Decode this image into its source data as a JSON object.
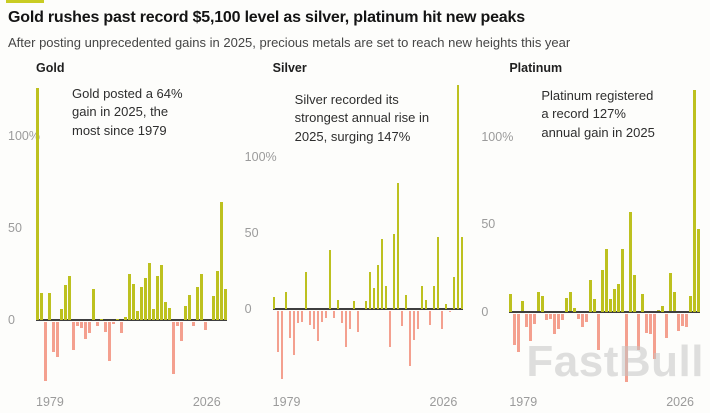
{
  "header": {
    "title": "Gold rushes past record $5,100 level as silver, platinum hit new peaks",
    "subtitle": "After posting unprecedented gains in 2025, precious metals are set to reach new heights this year"
  },
  "watermark": "FastBull",
  "colors": {
    "positive": "#bdc11f",
    "negative": "#f4a08f",
    "axis": "#3f3f3f",
    "tick": "#9b9b9b",
    "accent": "#c9cc23"
  },
  "chart_data": [
    {
      "type": "bar",
      "title": "Gold",
      "annotation": "Gold posted a 64% gain in 2025, the most since 1979",
      "x_tick_labels": [
        "1979",
        "2026"
      ],
      "yticks": [
        {
          "v": 100,
          "label": "100%"
        },
        {
          "v": 50,
          "label": "50"
        },
        {
          "v": 0,
          "label": "0"
        }
      ],
      "ylim": [
        -35,
        130
      ],
      "years": [
        1979,
        1980,
        1981,
        1982,
        1983,
        1984,
        1985,
        1986,
        1987,
        1988,
        1989,
        1990,
        1991,
        1992,
        1993,
        1994,
        1995,
        1996,
        1997,
        1998,
        1999,
        2000,
        2001,
        2002,
        2003,
        2004,
        2005,
        2006,
        2007,
        2008,
        2009,
        2010,
        2011,
        2012,
        2013,
        2014,
        2015,
        2016,
        2017,
        2018,
        2019,
        2020,
        2021,
        2022,
        2023,
        2024,
        2025,
        2026
      ],
      "values": [
        126,
        15,
        -32,
        15,
        -16,
        -19,
        6,
        19,
        24,
        -15,
        -2,
        -3,
        -9,
        -6,
        17,
        -2,
        1,
        -5,
        -21,
        -1,
        1,
        -6,
        2,
        25,
        20,
        5,
        18,
        23,
        31,
        6,
        24,
        30,
        10,
        7,
        -28,
        -2,
        -10,
        8,
        14,
        -2,
        18,
        25,
        -4,
        0,
        13,
        27,
        64,
        17
      ]
    },
    {
      "type": "bar",
      "title": "Silver",
      "annotation": "Silver recorded its strongest annual rise in 2025, surging 147%",
      "x_tick_labels": [
        "1979",
        "2026"
      ],
      "yticks": [
        {
          "v": 100,
          "label": "100%"
        },
        {
          "v": 50,
          "label": "50"
        },
        {
          "v": 0,
          "label": "0"
        }
      ],
      "ylim": [
        -50,
        150
      ],
      "years": [
        1979,
        1980,
        1981,
        1982,
        1983,
        1984,
        1985,
        1986,
        1987,
        1988,
        1989,
        1990,
        1991,
        1992,
        1993,
        1994,
        1995,
        1996,
        1997,
        1998,
        1999,
        2000,
        2001,
        2002,
        2003,
        2004,
        2005,
        2006,
        2007,
        2008,
        2009,
        2010,
        2011,
        2012,
        2013,
        2014,
        2015,
        2016,
        2017,
        2018,
        2019,
        2020,
        2021,
        2022,
        2023,
        2024,
        2025,
        2026
      ],
      "values": [
        8,
        -27,
        -45,
        11,
        -18,
        -29,
        -8,
        -7,
        24,
        -9,
        -12,
        -20,
        -7,
        -5,
        39,
        -5,
        6,
        -8,
        -24,
        -12,
        5,
        -14,
        0,
        5,
        24,
        14,
        29,
        46,
        15,
        -24,
        49,
        83,
        -10,
        9,
        -36,
        -19,
        -12,
        15,
        6,
        -9,
        15,
        47,
        -12,
        3,
        -1,
        21,
        147,
        47
      ]
    },
    {
      "type": "bar",
      "title": "Platinum",
      "annotation": "Platinum registered a record 127% annual gain in 2025",
      "x_tick_labels": [
        "1979",
        "2026"
      ],
      "yticks": [
        {
          "v": 100,
          "label": "100%"
        },
        {
          "v": 50,
          "label": "50"
        },
        {
          "v": 0,
          "label": "0"
        }
      ],
      "ylim": [
        -42,
        132
      ],
      "years": [
        1979,
        1980,
        1981,
        1982,
        1983,
        1984,
        1985,
        1986,
        1987,
        1988,
        1989,
        1990,
        1991,
        1992,
        1993,
        1994,
        1995,
        1996,
        1997,
        1998,
        1999,
        2000,
        2001,
        2002,
        2003,
        2004,
        2005,
        2006,
        2007,
        2008,
        2009,
        2010,
        2011,
        2012,
        2013,
        2014,
        2015,
        2016,
        2017,
        2018,
        2019,
        2020,
        2021,
        2022,
        2023,
        2024,
        2025,
        2026
      ],
      "values": [
        10,
        -18,
        -22,
        6,
        -8,
        -16,
        -6,
        11,
        9,
        -4,
        -3,
        -12,
        -9,
        -4,
        8,
        11,
        2,
        -3,
        -8,
        -5,
        18,
        7,
        -21,
        24,
        36,
        7,
        13,
        16,
        36,
        -39,
        57,
        21,
        -21,
        10,
        -11,
        -12,
        -26,
        1,
        3,
        -14,
        22,
        11,
        -10,
        -7,
        -8,
        9,
        127,
        47
      ]
    }
  ]
}
